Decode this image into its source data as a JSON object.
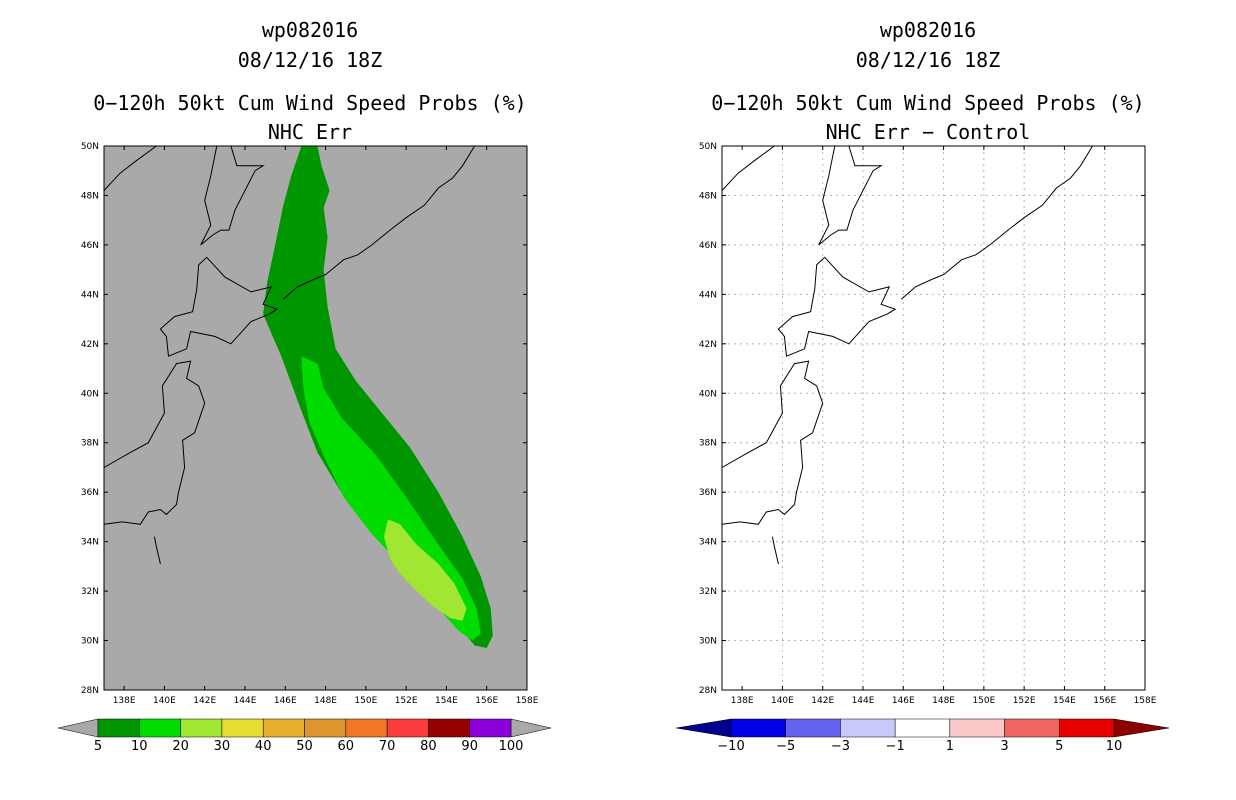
{
  "chart_data": [
    {
      "type": "heatmap",
      "title_lines": [
        "wp082016",
        "08/12/16 18Z",
        "0−120h 50kt Cum Wind Speed Probs (%)",
        "NHC Err"
      ],
      "xlabel": "",
      "ylabel": "",
      "xlim": [
        137,
        158
      ],
      "ylim": [
        28,
        50
      ],
      "x_ticks": [
        "138E",
        "140E",
        "142E",
        "144E",
        "146E",
        "148E",
        "150E",
        "152E",
        "154E",
        "156E",
        "158E"
      ],
      "y_ticks": [
        "28N",
        "30N",
        "32N",
        "34N",
        "36N",
        "38N",
        "40N",
        "42N",
        "44N",
        "46N",
        "48N",
        "50N"
      ],
      "background_color": "#a9a9a9",
      "gridlines": false,
      "colorbar": {
        "labels": [
          "5",
          "10",
          "20",
          "30",
          "40",
          "50",
          "60",
          "70",
          "80",
          "90",
          "100"
        ],
        "colors": [
          "#009600",
          "#00dc00",
          "#a0e632",
          "#e6dc32",
          "#e6af2d",
          "#dc962d",
          "#f07828",
          "#fa3c3c",
          "#960000",
          "#8c00dc"
        ]
      },
      "swath": [
        {
          "threshold_pct": 5,
          "color": "#009600",
          "value_range": "5-10",
          "outline": [
            [
              146.8,
              50
            ],
            [
              147.6,
              50
            ],
            [
              147.8,
              49.2
            ],
            [
              148.2,
              48.2
            ],
            [
              147.9,
              47.5
            ],
            [
              148.1,
              46.3
            ],
            [
              147.9,
              45
            ],
            [
              148.1,
              43.5
            ],
            [
              148.5,
              41.8
            ],
            [
              149.5,
              40.5
            ],
            [
              150.8,
              39.2
            ],
            [
              152.2,
              37.8
            ],
            [
              153.6,
              36
            ],
            [
              154.8,
              34.2
            ],
            [
              155.7,
              32.6
            ],
            [
              156.2,
              31.3
            ],
            [
              156.3,
              30.2
            ],
            [
              156,
              29.7
            ],
            [
              155.4,
              29.8
            ],
            [
              154.7,
              30.5
            ],
            [
              153.5,
              31.7
            ],
            [
              151.8,
              33.2
            ],
            [
              150.2,
              34.6
            ],
            [
              148.7,
              36.1
            ],
            [
              147.6,
              37.6
            ],
            [
              146.7,
              39.5
            ],
            [
              145.8,
              41.5
            ],
            [
              144.9,
              43.2
            ],
            [
              145.1,
              44.5
            ],
            [
              145.5,
              46
            ],
            [
              145.9,
              47.6
            ],
            [
              146.3,
              48.8
            ]
          ]
        },
        {
          "threshold_pct": 10,
          "color": "#00dc00",
          "value_range": "10-20",
          "outline": [
            [
              146.8,
              41.5
            ],
            [
              147.6,
              41.2
            ],
            [
              147.9,
              40.2
            ],
            [
              148.8,
              39
            ],
            [
              150.5,
              37.5
            ],
            [
              152,
              35.8
            ],
            [
              153.5,
              34
            ],
            [
              154.8,
              32.5
            ],
            [
              155.5,
              31.3
            ],
            [
              155.7,
              30.3
            ],
            [
              155.3,
              30
            ],
            [
              154.6,
              30.4
            ],
            [
              153.4,
              31.5
            ],
            [
              151.8,
              33
            ],
            [
              150.2,
              34.4
            ],
            [
              148.9,
              35.8
            ],
            [
              148,
              37.3
            ],
            [
              147.2,
              38.8
            ],
            [
              146.9,
              40.2
            ]
          ]
        },
        {
          "threshold_pct": 20,
          "color": "#a0e632",
          "value_range": "20-30",
          "outline": [
            [
              151.1,
              34.9
            ],
            [
              151.7,
              34.7
            ],
            [
              152.5,
              33.9
            ],
            [
              153.6,
              33.1
            ],
            [
              154.4,
              32.3
            ],
            [
              155,
              31.3
            ],
            [
              154.8,
              30.8
            ],
            [
              154.2,
              30.9
            ],
            [
              153.3,
              31.4
            ],
            [
              152.4,
              32.1
            ],
            [
              151.7,
              32.7
            ],
            [
              151.2,
              33.3
            ],
            [
              150.9,
              34.2
            ]
          ]
        }
      ],
      "coastlines": [
        {
          "name": "asia-mainland",
          "points": [
            [
              137,
              48.2
            ],
            [
              137.8,
              48.9
            ],
            [
              138.6,
              49.4
            ],
            [
              139.6,
              50
            ]
          ]
        },
        {
          "name": "sakhalin",
          "points": [
            [
              142.6,
              50
            ],
            [
              142.3,
              48.8
            ],
            [
              142,
              47.8
            ],
            [
              142.3,
              46.8
            ],
            [
              141.8,
              46
            ],
            [
              142.4,
              46.4
            ],
            [
              142.8,
              46.6
            ],
            [
              143.2,
              46.6
            ],
            [
              143.5,
              47.4
            ],
            [
              144.5,
              49
            ],
            [
              144.9,
              49.2
            ],
            [
              143.6,
              49.2
            ],
            [
              143.3,
              50
            ]
          ]
        },
        {
          "name": "honshu",
          "points": [
            [
              137,
              37
            ],
            [
              138.3,
              37.6
            ],
            [
              139.2,
              38
            ],
            [
              140,
              39.2
            ],
            [
              139.9,
              40.3
            ],
            [
              140.6,
              41.2
            ],
            [
              141.3,
              41.3
            ],
            [
              141.1,
              40.6
            ],
            [
              141.7,
              40.3
            ],
            [
              142,
              39.6
            ],
            [
              141.5,
              38.4
            ],
            [
              140.9,
              38.1
            ],
            [
              141,
              37
            ],
            [
              140.7,
              36
            ],
            [
              140.6,
              35.5
            ],
            [
              140.1,
              35.1
            ],
            [
              139.8,
              35.3
            ],
            [
              139.2,
              35.2
            ],
            [
              138.8,
              34.7
            ],
            [
              137.9,
              34.8
            ],
            [
              137,
              34.7
            ]
          ]
        },
        {
          "name": "hokkaido",
          "points": [
            [
              141.1,
              41.8
            ],
            [
              140.2,
              41.5
            ],
            [
              140.1,
              42.3
            ],
            [
              139.8,
              42.6
            ],
            [
              140.5,
              43.1
            ],
            [
              141.4,
              43.3
            ],
            [
              141.6,
              44.2
            ],
            [
              141.7,
              45.2
            ],
            [
              142.1,
              45.5
            ],
            [
              143,
              44.7
            ],
            [
              144.3,
              44.1
            ],
            [
              145.3,
              44.3
            ],
            [
              144.9,
              43.6
            ],
            [
              145.6,
              43.4
            ],
            [
              145.2,
              43.2
            ],
            [
              144.3,
              42.9
            ],
            [
              143.3,
              42
            ],
            [
              142.5,
              42.3
            ],
            [
              141.3,
              42.5
            ],
            [
              141.1,
              41.8
            ]
          ]
        },
        {
          "name": "kuril-islands",
          "points": [
            [
              145.9,
              43.8
            ],
            [
              146.6,
              44.3
            ],
            [
              147.4,
              44.6
            ],
            [
              148,
              44.8
            ],
            [
              148.9,
              45.4
            ],
            [
              149.6,
              45.6
            ],
            [
              150.3,
              46
            ],
            [
              151.2,
              46.6
            ],
            [
              152,
              47.1
            ],
            [
              152.9,
              47.6
            ],
            [
              153.6,
              48.3
            ],
            [
              154.3,
              48.7
            ],
            [
              154.8,
              49.2
            ],
            [
              155.4,
              50
            ]
          ]
        },
        {
          "name": "izu-islands",
          "points": [
            [
              139.5,
              34.2
            ],
            [
              139.6,
              33.8
            ],
            [
              139.8,
              33.1
            ]
          ]
        }
      ]
    },
    {
      "type": "heatmap",
      "title_lines": [
        "wp082016",
        "08/12/16 18Z",
        "0−120h 50kt Cum Wind Speed Probs (%)",
        "NHC Err − Control"
      ],
      "xlabel": "",
      "ylabel": "",
      "xlim": [
        137,
        158
      ],
      "ylim": [
        28,
        50
      ],
      "x_ticks": [
        "138E",
        "140E",
        "142E",
        "144E",
        "146E",
        "148E",
        "150E",
        "152E",
        "154E",
        "156E",
        "158E"
      ],
      "y_ticks": [
        "28N",
        "30N",
        "32N",
        "34N",
        "36N",
        "38N",
        "40N",
        "42N",
        "44N",
        "46N",
        "48N",
        "50N"
      ],
      "background_color": "#ffffff",
      "gridlines": true,
      "colorbar": {
        "labels": [
          "−10",
          "−5",
          "−3",
          "−1",
          "1",
          "3",
          "5",
          "10"
        ],
        "colors": [
          "#00008c",
          "#0000e6",
          "#6464f0",
          "#c8c8fa",
          "#ffffff",
          "#fac8c8",
          "#f06464",
          "#e60000",
          "#8c0000"
        ]
      },
      "swath": [],
      "coastlines": "same-as-left"
    }
  ]
}
